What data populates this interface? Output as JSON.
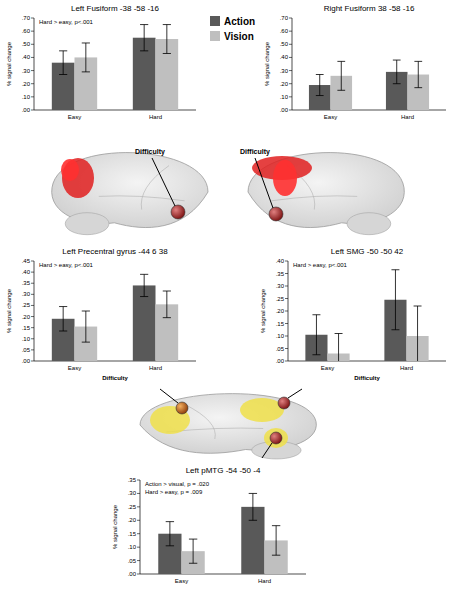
{
  "chart_data": [
    {
      "type": "bar",
      "title": "Left Fusiform -38 -58 -16",
      "y_label": "% signal change",
      "categories": [
        "Easy",
        "Hard"
      ],
      "series": [
        {
          "name": "Action",
          "color": "#595959",
          "values": [
            0.36,
            0.55
          ],
          "errors": [
            0.09,
            0.1
          ]
        },
        {
          "name": "Vision",
          "color": "#bfbfbf",
          "values": [
            0.4,
            0.54
          ],
          "errors": [
            0.11,
            0.11
          ]
        }
      ],
      "ylim": [
        0,
        0.7
      ],
      "yticks": [
        {
          "value": 0,
          "label": ".00"
        },
        {
          "value": 0.1,
          "label": ".10"
        },
        {
          "value": 0.2,
          "label": ".20"
        },
        {
          "value": 0.3,
          "label": ".30"
        },
        {
          "value": 0.4,
          "label": ".40"
        },
        {
          "value": 0.5,
          "label": ".50"
        },
        {
          "value": 0.6,
          "label": ".60"
        },
        {
          "value": 0.7,
          "label": ".70"
        }
      ],
      "annotations": [
        "Hard > easy, p<.001"
      ],
      "legend": "right",
      "grid": false
    },
    {
      "type": "bar",
      "title": "Right Fusiform 38 -58 -16",
      "y_label": "% signal change",
      "categories": [
        "Easy",
        "Hard"
      ],
      "series": [
        {
          "name": "Action",
          "color": "#595959",
          "values": [
            0.19,
            0.29
          ],
          "errors": [
            0.08,
            0.09
          ]
        },
        {
          "name": "Vision",
          "color": "#bfbfbf",
          "values": [
            0.26,
            0.27
          ],
          "errors": [
            0.11,
            0.1
          ]
        }
      ],
      "ylim": [
        0,
        0.7
      ],
      "yticks": [
        {
          "value": 0,
          "label": ".00"
        },
        {
          "value": 0.1,
          "label": ".10"
        },
        {
          "value": 0.2,
          "label": ".20"
        },
        {
          "value": 0.3,
          "label": ".30"
        },
        {
          "value": 0.4,
          "label": ".40"
        },
        {
          "value": 0.5,
          "label": ".50"
        },
        {
          "value": 0.6,
          "label": ".60"
        },
        {
          "value": 0.7,
          "label": ".70"
        }
      ],
      "grid": false
    },
    {
      "type": "bar",
      "title": "Left Precentral gyrus -44 6 38",
      "y_label": "% signal change",
      "x_label": "Difficulty",
      "categories": [
        "Easy",
        "Hard"
      ],
      "series": [
        {
          "name": "Action",
          "color": "#595959",
          "values": [
            0.19,
            0.34
          ],
          "errors": [
            0.055,
            0.05
          ]
        },
        {
          "name": "Vision",
          "color": "#bfbfbf",
          "values": [
            0.155,
            0.255
          ],
          "errors": [
            0.07,
            0.06
          ]
        }
      ],
      "ylim": [
        0,
        0.45
      ],
      "yticks": [
        {
          "value": 0,
          "label": ".00"
        },
        {
          "value": 0.05,
          "label": ".05"
        },
        {
          "value": 0.1,
          "label": ".10"
        },
        {
          "value": 0.15,
          "label": ".15"
        },
        {
          "value": 0.2,
          "label": ".20"
        },
        {
          "value": 0.25,
          "label": ".25"
        },
        {
          "value": 0.3,
          "label": ".30"
        },
        {
          "value": 0.35,
          "label": ".35"
        },
        {
          "value": 0.4,
          "label": ".40"
        },
        {
          "value": 0.45,
          "label": ".45"
        }
      ],
      "annotations": [
        "Hard > easy, p<.001"
      ],
      "grid": false
    },
    {
      "type": "bar",
      "title": "Left SMG -50 -50 42",
      "y_label": "% signal change",
      "x_label": "Difficulty",
      "categories": [
        "Easy",
        "Hard"
      ],
      "series": [
        {
          "name": "Action",
          "color": "#595959",
          "values": [
            0.105,
            0.245
          ],
          "errors": [
            0.08,
            0.12
          ]
        },
        {
          "name": "Vision",
          "color": "#bfbfbf",
          "values": [
            0.03,
            0.1
          ],
          "errors": [
            0.08,
            0.12
          ]
        }
      ],
      "ylim": [
        0,
        0.4
      ],
      "yticks": [
        {
          "value": 0,
          "label": ".00"
        },
        {
          "value": 0.05,
          "label": ".05"
        },
        {
          "value": 0.1,
          "label": ".10"
        },
        {
          "value": 0.15,
          "label": ".15"
        },
        {
          "value": 0.2,
          "label": ".20"
        },
        {
          "value": 0.25,
          "label": ".25"
        },
        {
          "value": 0.3,
          "label": ".30"
        },
        {
          "value": 0.35,
          "label": ".35"
        },
        {
          "value": 0.4,
          "label": ".40"
        }
      ],
      "annotations": [
        "Hard > easy, p<.001"
      ],
      "grid": false
    },
    {
      "type": "bar",
      "title": "Left pMTG -54 -50 -4",
      "y_label": "% signal change",
      "categories": [
        "Easy",
        "Hard"
      ],
      "series": [
        {
          "name": "Action",
          "color": "#595959",
          "values": [
            0.15,
            0.25
          ],
          "errors": [
            0.045,
            0.05
          ]
        },
        {
          "name": "Vision",
          "color": "#bfbfbf",
          "values": [
            0.085,
            0.125
          ],
          "errors": [
            0.045,
            0.055
          ]
        }
      ],
      "ylim": [
        0,
        0.35
      ],
      "yticks": [
        {
          "value": 0,
          "label": ".00"
        },
        {
          "value": 0.05,
          "label": ".05"
        },
        {
          "value": 0.1,
          "label": ".10"
        },
        {
          "value": 0.15,
          "label": ".15"
        },
        {
          "value": 0.2,
          "label": ".20"
        },
        {
          "value": 0.25,
          "label": ".25"
        },
        {
          "value": 0.3,
          "label": ".30"
        },
        {
          "value": 0.35,
          "label": ".35"
        }
      ],
      "annotations": [
        "Action > visual, p = .020",
        "Hard > easy, p = .009"
      ],
      "grid": false
    }
  ],
  "brain_labels": [
    "Difficulty",
    "Difficulty"
  ]
}
